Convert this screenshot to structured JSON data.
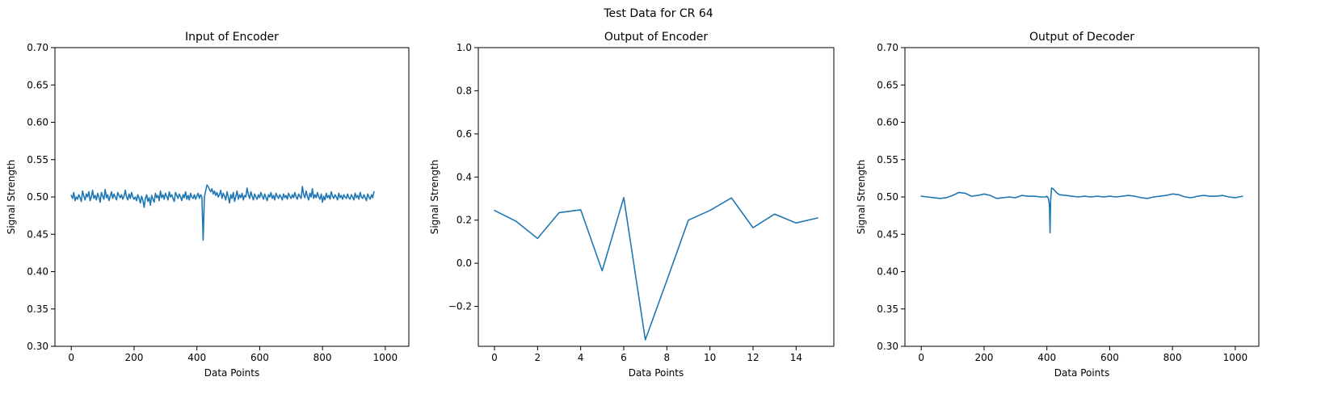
{
  "figure": {
    "suptitle": "Test Data for CR 64"
  },
  "colors": {
    "series": "#1f77b4"
  },
  "chart_data": [
    {
      "type": "line",
      "title": "Input of Encoder",
      "xlabel": "Data Points",
      "ylabel": "Signal Strength",
      "xlim": [
        -52,
        1075
      ],
      "ylim": [
        0.3,
        0.7
      ],
      "xticks": [
        0,
        200,
        400,
        600,
        800,
        1000
      ],
      "xtick_labels": [
        "0",
        "200",
        "400",
        "600",
        "800",
        "1000"
      ],
      "yticks": [
        0.3,
        0.35,
        0.4,
        0.45,
        0.5,
        0.55,
        0.6,
        0.65,
        0.7
      ],
      "ytick_labels": [
        "0.30",
        "0.35",
        "0.40",
        "0.45",
        "0.50",
        "0.55",
        "0.60",
        "0.65",
        "0.70"
      ],
      "grid": false,
      "series": [
        {
          "x_start": 0,
          "x_step": 4,
          "y": [
            0.502,
            0.498,
            0.506,
            0.495,
            0.5,
            0.497,
            0.503,
            0.499,
            0.494,
            0.508,
            0.501,
            0.496,
            0.504,
            0.5,
            0.507,
            0.495,
            0.5,
            0.509,
            0.498,
            0.502,
            0.496,
            0.505,
            0.5,
            0.493,
            0.506,
            0.501,
            0.497,
            0.51,
            0.499,
            0.503,
            0.495,
            0.501,
            0.507,
            0.498,
            0.504,
            0.5,
            0.496,
            0.506,
            0.502,
            0.499,
            0.503,
            0.497,
            0.501,
            0.509,
            0.5,
            0.496,
            0.504,
            0.498,
            0.506,
            0.5,
            0.497,
            0.5,
            0.495,
            0.503,
            0.498,
            0.492,
            0.501,
            0.496,
            0.486,
            0.498,
            0.503,
            0.494,
            0.499,
            0.489,
            0.502,
            0.497,
            0.493,
            0.505,
            0.499,
            0.502,
            0.495,
            0.508,
            0.499,
            0.503,
            0.497,
            0.505,
            0.501,
            0.496,
            0.507,
            0.5,
            0.503,
            0.498,
            0.494,
            0.506,
            0.502,
            0.498,
            0.504,
            0.5,
            0.495,
            0.503,
            0.499,
            0.507,
            0.497,
            0.502,
            0.496,
            0.505,
            0.5,
            0.498,
            0.503,
            0.497,
            0.501,
            0.505,
            0.498,
            0.503,
            0.5,
            0.442,
            0.5,
            0.508,
            0.516,
            0.514,
            0.51,
            0.507,
            0.511,
            0.504,
            0.508,
            0.502,
            0.506,
            0.5,
            0.503,
            0.509,
            0.498,
            0.505,
            0.501,
            0.496,
            0.507,
            0.5,
            0.492,
            0.503,
            0.498,
            0.506,
            0.494,
            0.501,
            0.508,
            0.497,
            0.503,
            0.499,
            0.505,
            0.496,
            0.502,
            0.5,
            0.512,
            0.503,
            0.498,
            0.507,
            0.501,
            0.496,
            0.504,
            0.5,
            0.497,
            0.503,
            0.499,
            0.506,
            0.501,
            0.497,
            0.504,
            0.499,
            0.495,
            0.503,
            0.5,
            0.506,
            0.498,
            0.502,
            0.496,
            0.505,
            0.501,
            0.498,
            0.503,
            0.5,
            0.496,
            0.504,
            0.499,
            0.502,
            0.497,
            0.505,
            0.501,
            0.498,
            0.503,
            0.499,
            0.506,
            0.5,
            0.497,
            0.504,
            0.501,
            0.498,
            0.514,
            0.503,
            0.499,
            0.508,
            0.501,
            0.496,
            0.505,
            0.5,
            0.511,
            0.498,
            0.503,
            0.499,
            0.506,
            0.5,
            0.497,
            0.504,
            0.493,
            0.501,
            0.496,
            0.505,
            0.499,
            0.502,
            0.497,
            0.507,
            0.501,
            0.498,
            0.503,
            0.5,
            0.496,
            0.505,
            0.499,
            0.502,
            0.497,
            0.503,
            0.5,
            0.498,
            0.504,
            0.499,
            0.497,
            0.503,
            0.5,
            0.496,
            0.505,
            0.499,
            0.502,
            0.497,
            0.506,
            0.5,
            0.498,
            0.503,
            0.499,
            0.495,
            0.504,
            0.5,
            0.497,
            0.503,
            0.499,
            0.507
          ]
        }
      ]
    },
    {
      "type": "line",
      "title": "Output of Encoder",
      "xlabel": "Data Points",
      "ylabel": "Signal Strength",
      "xlim": [
        -0.75,
        15.75
      ],
      "ylim": [
        -0.385,
        1.0
      ],
      "xticks": [
        0,
        2,
        4,
        6,
        8,
        10,
        12,
        14
      ],
      "xtick_labels": [
        "0",
        "2",
        "4",
        "6",
        "8",
        "10",
        "12",
        "14"
      ],
      "yticks": [
        -0.2,
        0.0,
        0.2,
        0.4,
        0.6,
        0.8,
        1.0
      ],
      "ytick_labels": [
        "−0.2",
        "0.0",
        "0.2",
        "0.4",
        "0.6",
        "0.8",
        "1.0"
      ],
      "grid": false,
      "series": [
        {
          "x_start": 0,
          "x_step": 1,
          "y": [
            0.245,
            0.195,
            0.115,
            0.235,
            0.248,
            -0.035,
            0.305,
            -0.355,
            -0.08,
            0.2,
            0.245,
            0.303,
            0.165,
            0.228,
            0.187,
            0.21
          ]
        }
      ]
    },
    {
      "type": "line",
      "title": "Output of Decoder",
      "xlabel": "Data Points",
      "ylabel": "Signal Strength",
      "xlim": [
        -52,
        1075
      ],
      "ylim": [
        0.3,
        0.7
      ],
      "xticks": [
        0,
        200,
        400,
        600,
        800,
        1000
      ],
      "xtick_labels": [
        "0",
        "200",
        "400",
        "600",
        "800",
        "1000"
      ],
      "yticks": [
        0.3,
        0.35,
        0.4,
        0.45,
        0.5,
        0.55,
        0.6,
        0.65,
        0.7
      ],
      "ytick_labels": [
        "0.30",
        "0.35",
        "0.40",
        "0.45",
        "0.50",
        "0.55",
        "0.60",
        "0.65",
        "0.70"
      ],
      "grid": false,
      "series": [
        {
          "x": [
            0,
            20,
            40,
            60,
            80,
            100,
            120,
            140,
            160,
            180,
            200,
            220,
            240,
            260,
            280,
            300,
            320,
            340,
            360,
            380,
            395,
            400,
            405,
            408,
            410,
            412,
            415,
            420,
            430,
            440,
            460,
            480,
            500,
            520,
            540,
            560,
            580,
            600,
            620,
            640,
            660,
            680,
            700,
            720,
            740,
            760,
            780,
            800,
            820,
            840,
            860,
            880,
            900,
            920,
            940,
            960,
            980,
            1000,
            1023
          ],
          "y": [
            0.501,
            0.5,
            0.499,
            0.498,
            0.499,
            0.502,
            0.506,
            0.505,
            0.501,
            0.502,
            0.504,
            0.502,
            0.498,
            0.499,
            0.5,
            0.499,
            0.502,
            0.501,
            0.501,
            0.5,
            0.5,
            0.501,
            0.498,
            0.49,
            0.452,
            0.495,
            0.512,
            0.511,
            0.506,
            0.503,
            0.502,
            0.501,
            0.5,
            0.501,
            0.5,
            0.501,
            0.5,
            0.501,
            0.5,
            0.501,
            0.502,
            0.501,
            0.499,
            0.498,
            0.5,
            0.501,
            0.502,
            0.504,
            0.503,
            0.5,
            0.499,
            0.501,
            0.502,
            0.501,
            0.501,
            0.502,
            0.5,
            0.499,
            0.501
          ]
        }
      ]
    }
  ]
}
